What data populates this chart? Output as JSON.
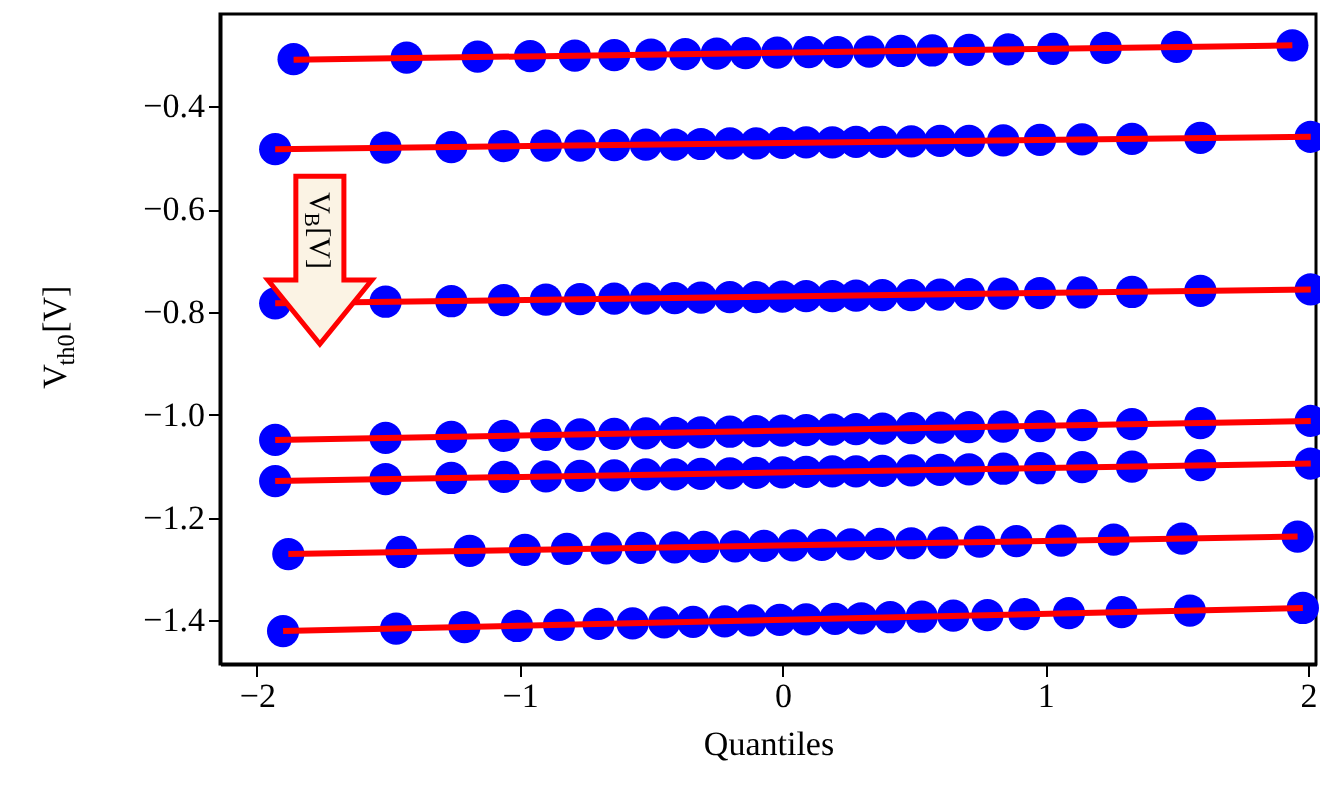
{
  "chart_data": {
    "type": "scatter",
    "xlabel": "Quantiles",
    "ylabel": "V$_{th0}$[V]",
    "xlim": [
      -2.14,
      2.03
    ],
    "ylim": [
      -1.485,
      -0.22
    ],
    "xticks": [
      -2,
      -1,
      0,
      1,
      2
    ],
    "yticks": [
      -1.4,
      -1.2,
      {
        "value": -1.0,
        "label": "−1.0"
      },
      -0.8,
      -0.6,
      -0.4
    ],
    "grid": false,
    "marker": "circle",
    "annotations": [
      "V$_{B}$[V]"
    ],
    "series": [
      {
        "color": "#0000ff",
        "x": [
          -1.86,
          -1.43,
          -1.16,
          -0.96,
          -0.79,
          -0.64,
          -0.5,
          -0.37,
          -0.25,
          -0.14,
          -0.02,
          0.1,
          0.21,
          0.33,
          0.45,
          0.57,
          0.71,
          0.86,
          1.03,
          1.23,
          1.5,
          1.94
        ],
        "values": [
          -0.308,
          -0.305,
          -0.303,
          -0.302,
          -0.301,
          -0.3,
          -0.299,
          -0.298,
          -0.297,
          -0.296,
          -0.295,
          -0.294,
          -0.294,
          -0.293,
          -0.292,
          -0.291,
          -0.29,
          -0.289,
          -0.288,
          -0.286,
          -0.284,
          -0.281
        ]
      },
      {
        "color": "#0000ff",
        "x": [
          -1.93,
          -1.51,
          -1.26,
          -1.06,
          -0.9,
          -0.77,
          -0.64,
          -0.52,
          -0.41,
          -0.31,
          -0.2,
          -0.1,
          0.0,
          0.09,
          0.19,
          0.28,
          0.38,
          0.49,
          0.6,
          0.71,
          0.84,
          0.98,
          1.14,
          1.33,
          1.59,
          2.01
        ],
        "values": [
          -0.483,
          -0.48,
          -0.479,
          -0.477,
          -0.476,
          -0.476,
          -0.475,
          -0.474,
          -0.474,
          -0.473,
          -0.472,
          -0.472,
          -0.471,
          -0.47,
          -0.47,
          -0.469,
          -0.469,
          -0.468,
          -0.467,
          -0.467,
          -0.466,
          -0.465,
          -0.464,
          -0.463,
          -0.461,
          -0.459
        ]
      },
      {
        "color": "#0000ff",
        "x": [
          -1.93,
          -1.51,
          -1.26,
          -1.06,
          -0.9,
          -0.77,
          -0.64,
          -0.52,
          -0.41,
          -0.31,
          -0.2,
          -0.1,
          0.0,
          0.09,
          0.19,
          0.28,
          0.38,
          0.49,
          0.6,
          0.71,
          0.84,
          0.98,
          1.14,
          1.33,
          1.59,
          2.01
        ],
        "values": [
          -0.783,
          -0.78,
          -0.779,
          -0.777,
          -0.776,
          -0.775,
          -0.774,
          -0.774,
          -0.773,
          -0.772,
          -0.771,
          -0.771,
          -0.77,
          -0.769,
          -0.769,
          -0.768,
          -0.767,
          -0.767,
          -0.766,
          -0.765,
          -0.764,
          -0.763,
          -0.762,
          -0.761,
          -0.759,
          -0.756
        ]
      },
      {
        "color": "#0000ff",
        "x": [
          -1.93,
          -1.51,
          -1.26,
          -1.06,
          -0.9,
          -0.77,
          -0.64,
          -0.52,
          -0.41,
          -0.31,
          -0.2,
          -0.1,
          0.0,
          0.09,
          0.19,
          0.28,
          0.38,
          0.49,
          0.6,
          0.71,
          0.84,
          0.98,
          1.14,
          1.33,
          1.59,
          2.01
        ],
        "values": [
          -1.049,
          -1.045,
          -1.043,
          -1.041,
          -1.039,
          -1.038,
          -1.037,
          -1.036,
          -1.035,
          -1.034,
          -1.033,
          -1.032,
          -1.031,
          -1.03,
          -1.029,
          -1.028,
          -1.027,
          -1.026,
          -1.025,
          -1.024,
          -1.023,
          -1.022,
          -1.02,
          -1.018,
          -1.016,
          -1.012
        ]
      },
      {
        "color": "#0000ff",
        "x": [
          -1.93,
          -1.51,
          -1.26,
          -1.06,
          -0.9,
          -0.77,
          -0.64,
          -0.52,
          -0.41,
          -0.31,
          -0.2,
          -0.1,
          0.0,
          0.09,
          0.19,
          0.28,
          0.38,
          0.49,
          0.6,
          0.71,
          0.84,
          0.98,
          1.14,
          1.33,
          1.59,
          2.01
        ],
        "values": [
          -1.129,
          -1.125,
          -1.123,
          -1.121,
          -1.12,
          -1.119,
          -1.118,
          -1.116,
          -1.116,
          -1.115,
          -1.114,
          -1.113,
          -1.112,
          -1.111,
          -1.11,
          -1.11,
          -1.109,
          -1.108,
          -1.107,
          -1.106,
          -1.105,
          -1.104,
          -1.102,
          -1.101,
          -1.098,
          -1.095
        ]
      },
      {
        "color": "#0000ff",
        "x": [
          -1.88,
          -1.45,
          -1.19,
          -0.98,
          -0.82,
          -0.67,
          -0.54,
          -0.41,
          -0.3,
          -0.18,
          -0.07,
          0.04,
          0.15,
          0.26,
          0.37,
          0.49,
          0.61,
          0.75,
          0.89,
          1.06,
          1.26,
          1.52,
          1.96
        ],
        "values": [
          -1.271,
          -1.267,
          -1.265,
          -1.263,
          -1.261,
          -1.26,
          -1.259,
          -1.258,
          -1.257,
          -1.256,
          -1.255,
          -1.254,
          -1.253,
          -1.252,
          -1.251,
          -1.25,
          -1.249,
          -1.247,
          -1.246,
          -1.245,
          -1.243,
          -1.241,
          -1.237
        ]
      },
      {
        "color": "#0000ff",
        "x": [
          -1.9,
          -1.47,
          -1.21,
          -1.01,
          -0.85,
          -0.7,
          -0.57,
          -0.45,
          -0.34,
          -0.22,
          -0.12,
          -0.01,
          0.09,
          0.2,
          0.3,
          0.41,
          0.53,
          0.65,
          0.78,
          0.92,
          1.09,
          1.29,
          1.55,
          1.98
        ],
        "values": [
          -1.421,
          -1.416,
          -1.413,
          -1.411,
          -1.409,
          -1.407,
          -1.406,
          -1.404,
          -1.403,
          -1.402,
          -1.4,
          -1.399,
          -1.398,
          -1.397,
          -1.396,
          -1.394,
          -1.393,
          -1.391,
          -1.39,
          -1.388,
          -1.386,
          -1.384,
          -1.381,
          -1.376
        ]
      },
      {
        "type": "line",
        "marker": "none",
        "line_style": "solid",
        "color": "#ff0000",
        "x": [
          -1.86,
          1.94
        ],
        "values": [
          -0.309,
          -0.281
        ]
      },
      {
        "type": "line",
        "marker": "none",
        "line_style": "solid",
        "color": "#ff0000",
        "x": [
          -1.93,
          2.01
        ],
        "values": [
          -0.483,
          -0.459
        ]
      },
      {
        "type": "line",
        "marker": "none",
        "line_style": "solid",
        "color": "#ff0000",
        "x": [
          -1.93,
          2.01
        ],
        "values": [
          -0.783,
          -0.756
        ]
      },
      {
        "type": "line",
        "marker": "none",
        "line_style": "solid",
        "color": "#ff0000",
        "x": [
          -1.93,
          2.01
        ],
        "values": [
          -1.049,
          -1.012
        ]
      },
      {
        "type": "line",
        "marker": "none",
        "line_style": "solid",
        "color": "#ff0000",
        "x": [
          -1.93,
          2.01
        ],
        "values": [
          -1.129,
          -1.095
        ]
      },
      {
        "type": "line",
        "marker": "none",
        "line_style": "solid",
        "color": "#ff0000",
        "x": [
          -1.88,
          1.96
        ],
        "values": [
          -1.271,
          -1.237
        ]
      },
      {
        "type": "line",
        "marker": "none",
        "line_style": "solid",
        "color": "#ff0000",
        "x": [
          -1.9,
          1.98
        ],
        "values": [
          -1.421,
          -1.376
        ]
      }
    ]
  }
}
